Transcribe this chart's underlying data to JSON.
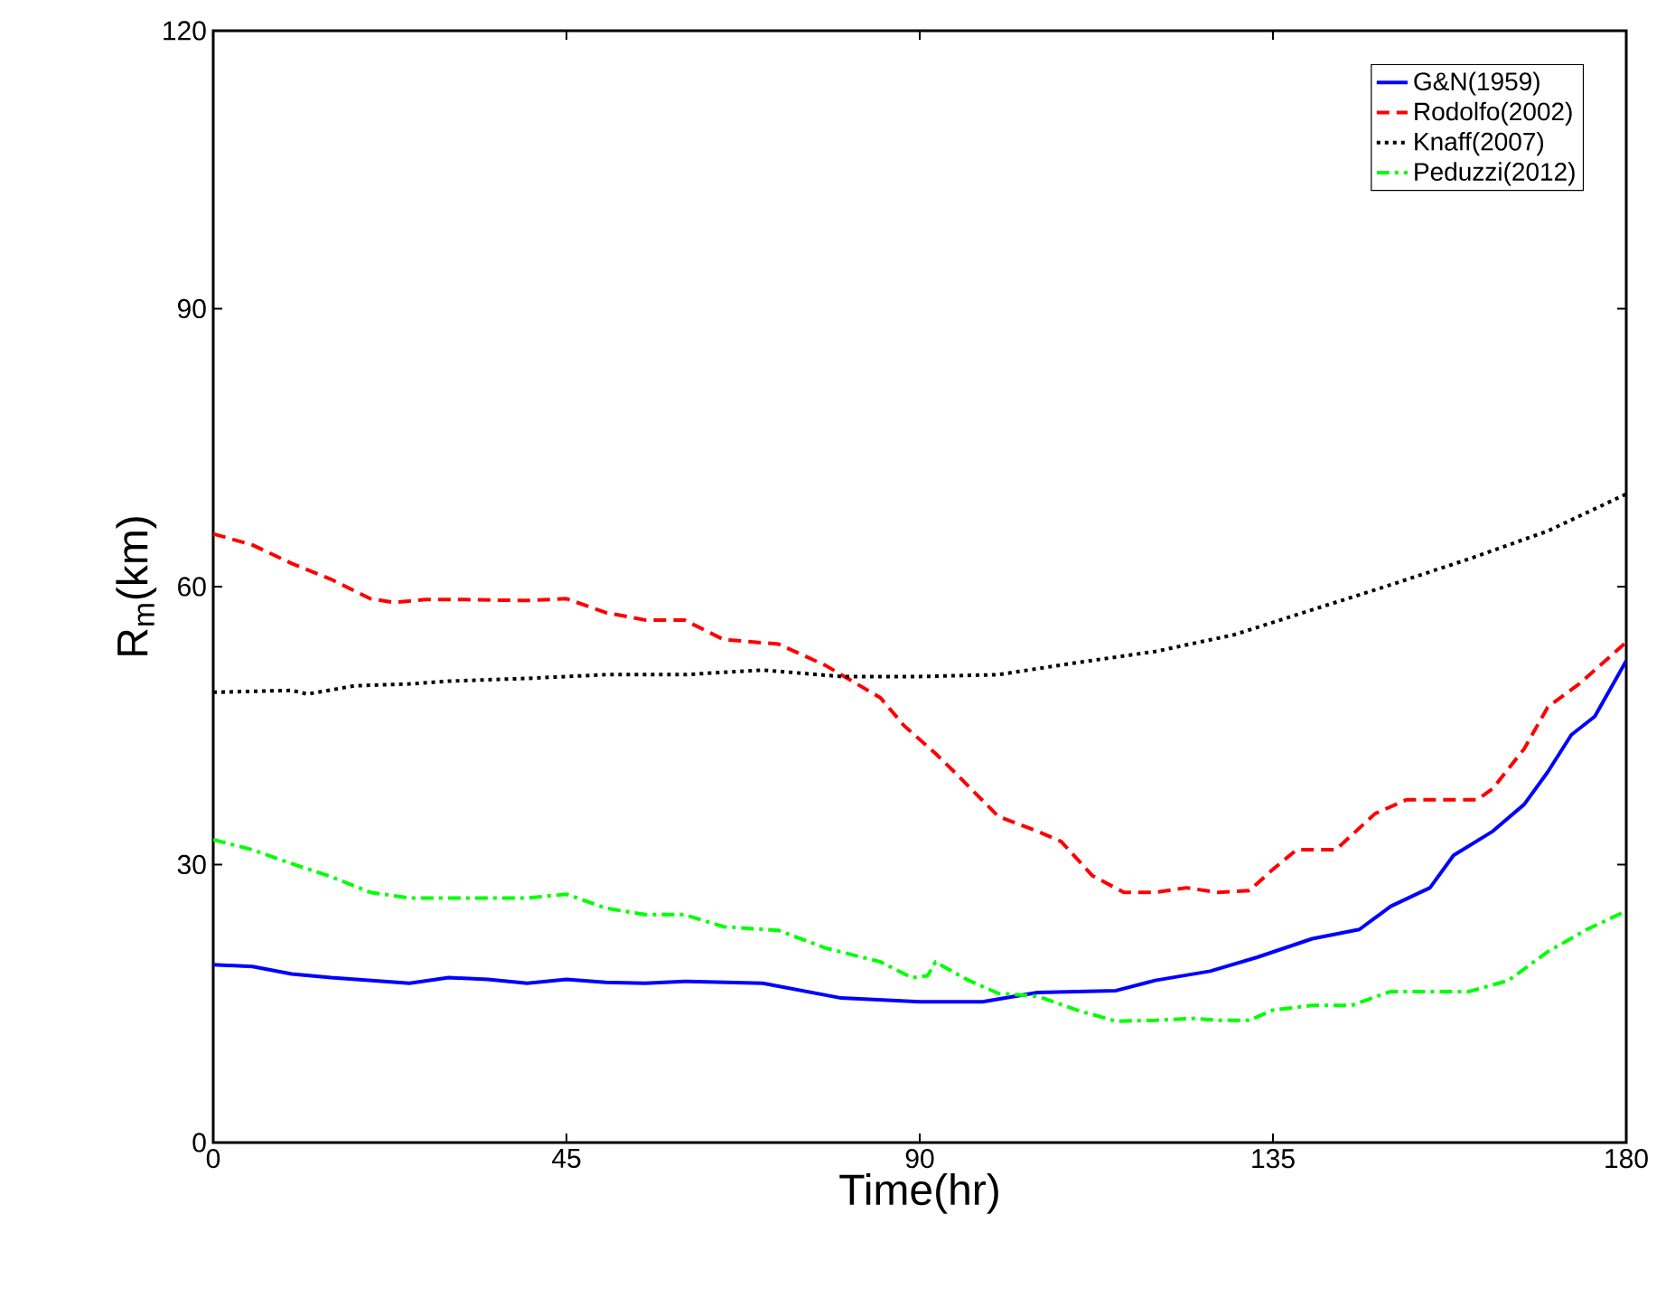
{
  "chart_data": {
    "type": "line",
    "xlabel": "Time(hr)",
    "ylabel": "R$_{m}$(km)",
    "xlim": [
      0,
      180
    ],
    "xticks": [
      0,
      45,
      90,
      135,
      180
    ],
    "ylim": [
      0,
      120
    ],
    "yticks": [
      0,
      30,
      60,
      90,
      120
    ],
    "grid": false,
    "legend": "top right",
    "marker": "none",
    "series": [
      {
        "name": "G&N(1959)",
        "color": "#0000ff",
        "line_style": "solid",
        "x": [
          0,
          5,
          10,
          15,
          25,
          30,
          35,
          40,
          45,
          50,
          55,
          60,
          70,
          80,
          90,
          98,
          105,
          115,
          120,
          127,
          133,
          140,
          146,
          150,
          155,
          158,
          163,
          167,
          170,
          173,
          176,
          178,
          180
        ],
        "values": [
          19.2,
          19,
          18.2,
          17.8,
          17.2,
          17.8,
          17.6,
          17.2,
          17.6,
          17.3,
          17.2,
          17.4,
          17.2,
          15.6,
          15.2,
          15.2,
          16.2,
          16.4,
          17.5,
          18.5,
          20,
          22,
          23,
          25.5,
          27.5,
          31,
          33.6,
          36.5,
          40,
          44,
          46,
          49,
          52
        ]
      },
      {
        "name": "Rodolfo(2002)",
        "color": "#ff0000",
        "line_style": "dashed",
        "x": [
          0,
          5,
          10,
          15,
          20,
          23,
          27,
          32,
          40,
          45,
          50,
          55,
          60,
          65,
          72,
          78,
          85,
          88,
          92,
          95,
          100,
          105,
          108,
          112,
          116,
          120,
          124,
          128,
          132,
          135,
          138,
          143,
          148,
          152,
          156,
          161,
          163,
          167,
          170,
          174,
          180
        ],
        "values": [
          65.7,
          64.5,
          62.5,
          60.8,
          58.7,
          58.3,
          58.6,
          58.6,
          58.5,
          58.7,
          57.2,
          56.4,
          56.4,
          54.3,
          53.8,
          51.5,
          48,
          45,
          42,
          39.5,
          35.2,
          33.6,
          32.5,
          28.8,
          27,
          27,
          27.5,
          27,
          27.2,
          29.5,
          31.6,
          31.6,
          35.5,
          37,
          37,
          37,
          38.2,
          42.5,
          47,
          49.5,
          54
        ]
      },
      {
        "name": "Knaff(2007)",
        "color": "#000000",
        "line_style": "dotted",
        "x": [
          0,
          5,
          10,
          12,
          18,
          25,
          30,
          40,
          50,
          60,
          70,
          80,
          90,
          100,
          110,
          120,
          130,
          140,
          150,
          160,
          170,
          180
        ],
        "values": [
          48.6,
          48.7,
          48.8,
          48.4,
          49.3,
          49.5,
          49.8,
          50.1,
          50.5,
          50.5,
          51,
          50.3,
          50.3,
          50.5,
          51.8,
          53,
          54.8,
          57.5,
          60.2,
          63,
          66,
          70
        ]
      },
      {
        "name": "Peduzzi(2012)",
        "color": "#00ff00",
        "line_style": "dashdot",
        "x": [
          0,
          5,
          10,
          15,
          20,
          25,
          30,
          40,
          45,
          50,
          55,
          60,
          65,
          72,
          78,
          85,
          89,
          91,
          92,
          96,
          100,
          105,
          110,
          115,
          120,
          125,
          128,
          132,
          135,
          140,
          145,
          150,
          160,
          165,
          170,
          175,
          180
        ],
        "values": [
          32.7,
          31.6,
          30.1,
          28.7,
          27,
          26.4,
          26.4,
          26.4,
          26.8,
          25.3,
          24.6,
          24.6,
          23.3,
          22.9,
          21,
          19.5,
          17.8,
          18,
          19.5,
          17.6,
          16.1,
          15.8,
          14.3,
          13.1,
          13.2,
          13.4,
          13.2,
          13.2,
          14.3,
          14.8,
          14.8,
          16.3,
          16.3,
          17.5,
          20.6,
          23,
          25
        ]
      }
    ]
  }
}
